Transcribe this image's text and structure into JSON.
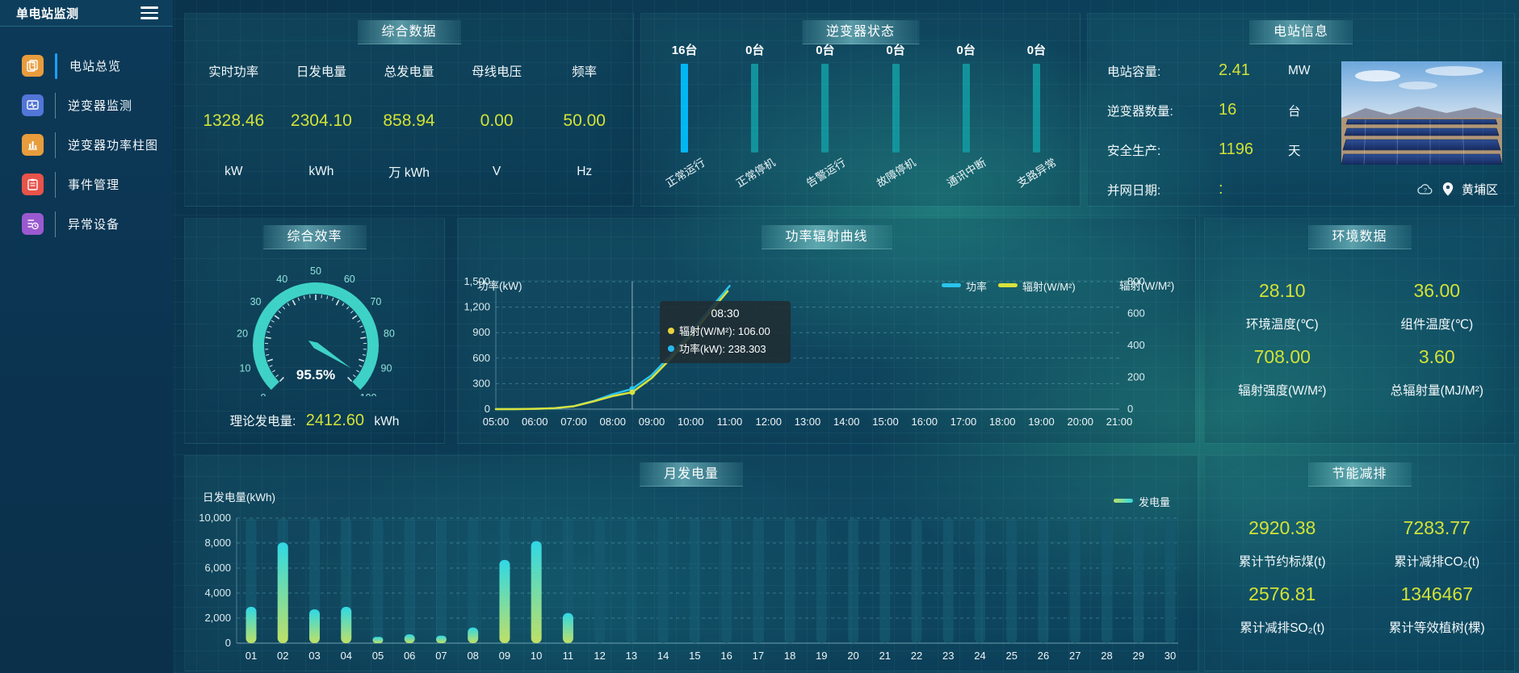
{
  "app": {
    "title": "单电站监测"
  },
  "sidebar": {
    "items": [
      {
        "label": "电站总览",
        "icon": "book-icon",
        "color": "#e89c3c",
        "active": true
      },
      {
        "label": "逆变器监测",
        "icon": "monitor-pulse-icon",
        "color": "#5276d8",
        "active": false
      },
      {
        "label": "逆变器功率柱图",
        "icon": "bar-chart-icon",
        "color": "#e89c3c",
        "active": false
      },
      {
        "label": "事件管理",
        "icon": "clipboard-icon",
        "color": "#e8534a",
        "active": false
      },
      {
        "label": "异常设备",
        "icon": "list-clock-icon",
        "color": "#9b59d0",
        "active": false
      }
    ]
  },
  "panels": {
    "overview": {
      "title": "综合数据",
      "metrics": [
        {
          "label": "实时功率",
          "value": "1328.46",
          "unit": "kW"
        },
        {
          "label": "日发电量",
          "value": "2304.10",
          "unit": "kWh"
        },
        {
          "label": "总发电量",
          "value": "858.94",
          "unit": "万 kWh"
        },
        {
          "label": "母线电压",
          "value": "0.00",
          "unit": "V"
        },
        {
          "label": "频率",
          "value": "50.00",
          "unit": "Hz"
        }
      ]
    },
    "inverter_status": {
      "title": "逆变器状态"
    },
    "station_info": {
      "title": "电站信息",
      "rows": [
        {
          "label": "电站容量:",
          "value": "2.41",
          "unit": "MW"
        },
        {
          "label": "逆变器数量:",
          "value": "16",
          "unit": "台"
        },
        {
          "label": "安全生产:",
          "value": "1196",
          "unit": "天"
        },
        {
          "label": "并网日期:",
          "value": ":",
          "unit": ""
        }
      ],
      "location": "黄埔区"
    },
    "efficiency": {
      "title": "综合效率",
      "footer_label": "理论发电量:",
      "footer_value": "2412.60",
      "footer_unit": "kWh"
    },
    "power_curve": {
      "title": "功率辐射曲线"
    },
    "environment": {
      "title": "环境数据",
      "metrics": [
        {
          "value": "28.10",
          "label": "环境温度(℃)"
        },
        {
          "value": "36.00",
          "label": "组件温度(℃)"
        },
        {
          "value": "708.00",
          "label": "辐射强度(W/M²)"
        },
        {
          "value": "3.60",
          "label": "总辐射量(MJ/M²)"
        }
      ]
    },
    "monthly": {
      "title": "月发电量"
    },
    "saving": {
      "title": "节能减排",
      "metrics": [
        {
          "value": "2920.38",
          "label": "累计节约标煤(t)"
        },
        {
          "value": "7283.77",
          "label": "累计减排CO₂(t)"
        },
        {
          "value": "2576.81",
          "label": "累计减排SO₂(t)"
        },
        {
          "value": "1346467",
          "label": "累计等效植树(棵)"
        }
      ]
    }
  },
  "chart_data": [
    {
      "id": "inverter_status",
      "type": "bar",
      "categories": [
        "正常运行",
        "正常停机",
        "告警运行",
        "故障停机",
        "通讯中断",
        "支路异常"
      ],
      "values": [
        16,
        0,
        0,
        0,
        0,
        0
      ],
      "unit": "台",
      "bar_colors": [
        "#00b7f4",
        "#12939b",
        "#12939b",
        "#12939b",
        "#12939b",
        "#12939b"
      ]
    },
    {
      "id": "efficiency_gauge",
      "type": "gauge",
      "value": 95.5,
      "display": "95.5%",
      "min": 0,
      "max": 100,
      "tick_labels": [
        "0",
        "10",
        "20",
        "30",
        "40",
        "50",
        "60",
        "70",
        "80",
        "90",
        "100"
      ],
      "ring_color": "#3ed2c6",
      "label_color": "#8fe3da"
    },
    {
      "id": "power_radiation",
      "type": "line",
      "title": "功率辐射曲线",
      "ylabel_left": "功率(kW)",
      "ylabel_right": "辐射(W/M²)",
      "left_ticks": [
        "1,500",
        "1,200",
        "900",
        "600",
        "300",
        "0"
      ],
      "right_ticks": [
        "800",
        "600",
        "400",
        "200",
        "0"
      ],
      "left_max": 1500,
      "right_max": 800,
      "x_ticks": [
        "05:00",
        "06:00",
        "07:00",
        "08:00",
        "09:00",
        "10:00",
        "11:00",
        "12:00",
        "13:00",
        "14:00",
        "15:00",
        "16:00",
        "17:00",
        "18:00",
        "19:00",
        "20:00",
        "21:00"
      ],
      "x_range": [
        5,
        21
      ],
      "legend": [
        {
          "name": "功率",
          "color": "#29c4ee"
        },
        {
          "name": "辐射(W/M²)",
          "color": "#d9e23c"
        }
      ],
      "series": [
        {
          "name": "功率",
          "axis": "left",
          "color": "#29c4ee",
          "points": [
            [
              5,
              0
            ],
            [
              5.5,
              1
            ],
            [
              6,
              3
            ],
            [
              6.5,
              10
            ],
            [
              7,
              35
            ],
            [
              7.5,
              95
            ],
            [
              8,
              175
            ],
            [
              8.5,
              238.3
            ],
            [
              9,
              400
            ],
            [
              9.5,
              640
            ],
            [
              10,
              900
            ],
            [
              10.5,
              1180
            ],
            [
              11,
              1450
            ]
          ]
        },
        {
          "name": "辐射(W/M²)",
          "axis": "right",
          "color": "#d9e23c",
          "points": [
            [
              5,
              0
            ],
            [
              5.5,
              0
            ],
            [
              6,
              2
            ],
            [
              6.5,
              6
            ],
            [
              7,
              18
            ],
            [
              7.5,
              48
            ],
            [
              8,
              82
            ],
            [
              8.5,
              106
            ],
            [
              9,
              195
            ],
            [
              9.5,
              320
            ],
            [
              10,
              460
            ],
            [
              10.5,
              610
            ],
            [
              10.95,
              740
            ]
          ]
        }
      ],
      "cursor": {
        "x": 8.5
      },
      "tooltip": {
        "title": "08:30",
        "rows": [
          {
            "name": "辐射(W/M²)",
            "value": "106.00",
            "color": "#e8d33f"
          },
          {
            "name": "功率(kW)",
            "value": "238.303",
            "color": "#28b8f0"
          }
        ]
      }
    },
    {
      "id": "monthly_energy",
      "type": "bar",
      "title": "月发电量",
      "ylabel": "日发电量(kWh)",
      "legend": "发电量",
      "y_ticks": [
        "10,000",
        "8,000",
        "6,000",
        "4,000",
        "2,000",
        "0"
      ],
      "ymax": 10000,
      "categories": [
        "01",
        "02",
        "03",
        "04",
        "05",
        "06",
        "07",
        "08",
        "09",
        "10",
        "11",
        "12",
        "13",
        "14",
        "15",
        "16",
        "17",
        "18",
        "19",
        "20",
        "21",
        "22",
        "23",
        "24",
        "25",
        "26",
        "27",
        "28",
        "29",
        "30"
      ],
      "values": [
        2900,
        8050,
        2700,
        2900,
        500,
        700,
        600,
        1250,
        6650,
        8150,
        2400,
        0,
        0,
        0,
        0,
        0,
        0,
        0,
        0,
        0,
        0,
        0,
        0,
        0,
        0,
        0,
        0,
        0,
        0,
        0
      ],
      "bar_gradient": [
        "#bfe066",
        "#2fd8e5"
      ],
      "track_color": "rgba(22,88,110,0.78)"
    }
  ]
}
